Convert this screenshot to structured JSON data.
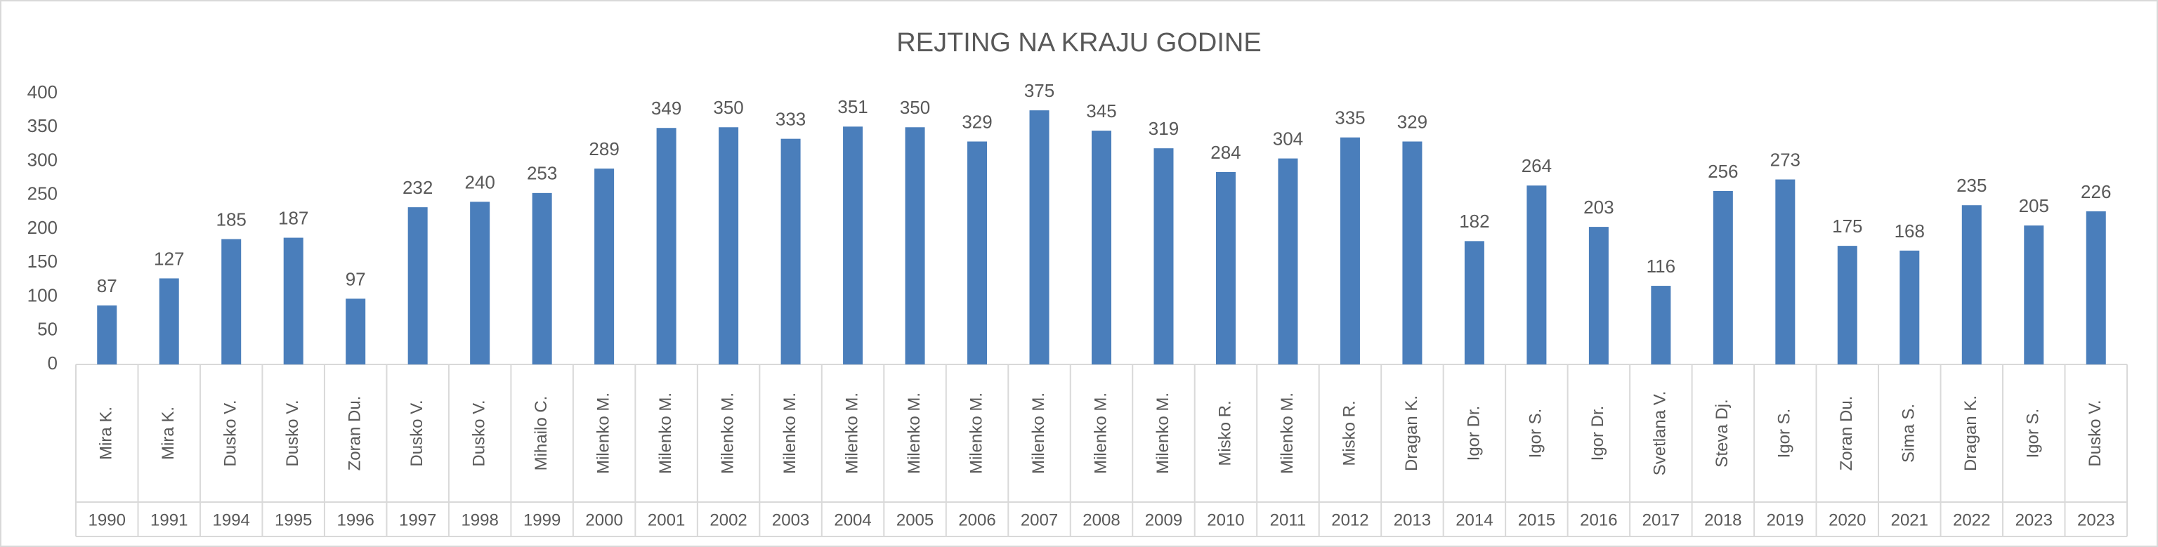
{
  "chart_data": {
    "type": "bar",
    "title": "REJTING NA KRAJU GODINE",
    "categories": [
      "Mira K.",
      "Mira K.",
      "Dusko V.",
      "Dusko V.",
      "Zoran Du.",
      "Dusko V.",
      "Dusko V.",
      "Mihailo C.",
      "Milenko M.",
      "Milenko M.",
      "Milenko M.",
      "Milenko M.",
      "Milenko M.",
      "Milenko M.",
      "Milenko M.",
      "Milenko M.",
      "Milenko M.",
      "Milenko M.",
      "Misko R.",
      "Milenko M.",
      "Misko R.",
      "Dragan K.",
      "Igor Dr.",
      "Igor S.",
      "Igor Dr.",
      "Svetlana V.",
      "Steva Dj.",
      "Igor S.",
      "Zoran Du.",
      "Sima S.",
      "Dragan K.",
      "Igor S.",
      "Dusko V."
    ],
    "years": [
      "1990",
      "1991",
      "1994",
      "1995",
      "1996",
      "1997",
      "1998",
      "1999",
      "2000",
      "2001",
      "2002",
      "2003",
      "2004",
      "2005",
      "2006",
      "2007",
      "2008",
      "2009",
      "2010",
      "2011",
      "2012",
      "2013",
      "2014",
      "2015",
      "2016",
      "2017",
      "2018",
      "2019",
      "2020",
      "2021",
      "2022",
      "2023",
      "2023"
    ],
    "values": [
      87,
      127,
      185,
      187,
      97,
      232,
      240,
      253,
      289,
      349,
      350,
      333,
      351,
      350,
      329,
      375,
      345,
      319,
      284,
      304,
      335,
      329,
      182,
      264,
      203,
      116,
      256,
      273,
      175,
      168,
      235,
      205,
      226
    ],
    "color": "#4a7ebb",
    "ylim": [
      0,
      400
    ],
    "yticks": [
      0,
      50,
      100,
      150,
      200,
      250,
      300,
      350,
      400
    ],
    "grid": false
  }
}
